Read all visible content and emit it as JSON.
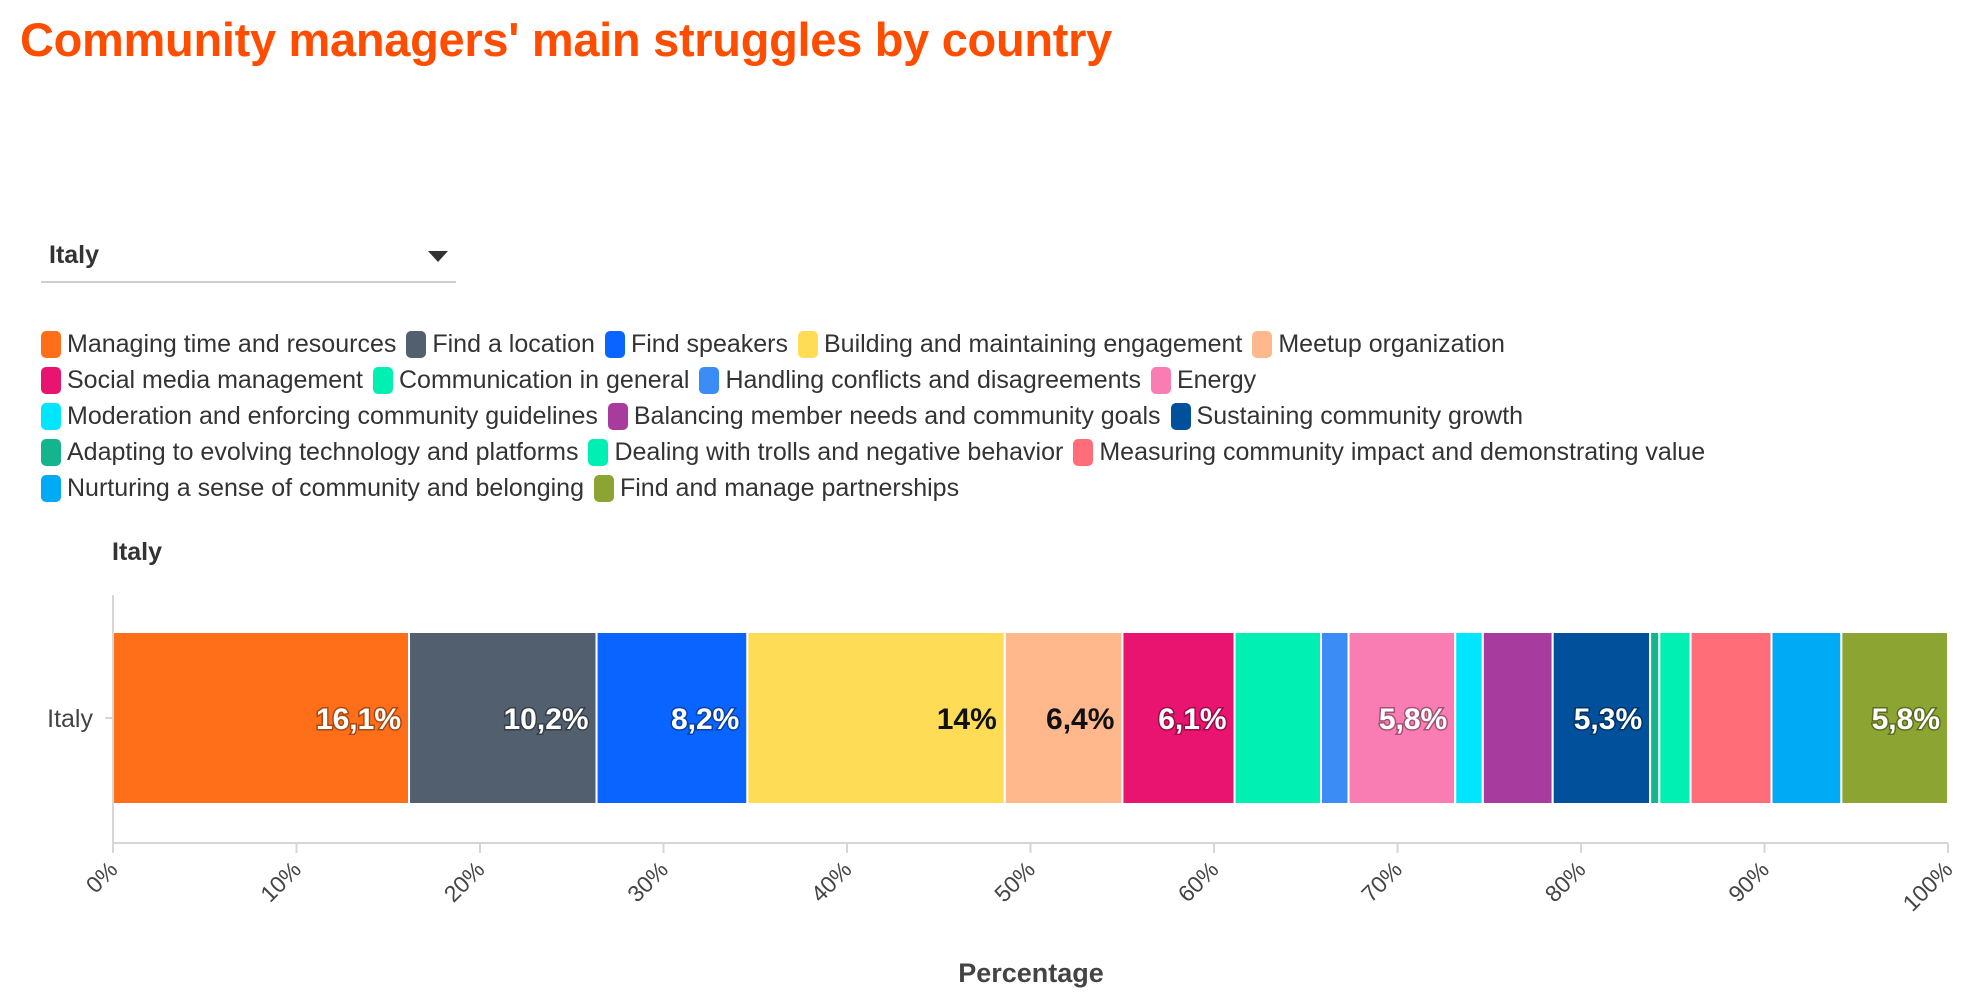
{
  "title": "Community managers' main struggles by country",
  "selector": {
    "selected": "Italy"
  },
  "legend_rows": [
    [
      0,
      1,
      2,
      3,
      4
    ],
    [
      5,
      6,
      7,
      8
    ],
    [
      9,
      10,
      11
    ],
    [
      12,
      13,
      14
    ],
    [
      15,
      16
    ]
  ],
  "chart_data": {
    "type": "bar",
    "orientation": "horizontal",
    "stacked": true,
    "title": "Italy",
    "xlabel": "Percentage",
    "ylabel": "",
    "xlim": [
      0,
      100
    ],
    "x_ticks": [
      "0%",
      "10%",
      "20%",
      "30%",
      "40%",
      "50%",
      "60%",
      "70%",
      "80%",
      "90%",
      "100%"
    ],
    "categories": [
      "Italy"
    ],
    "series": [
      {
        "name": "Managing time and resources",
        "color": "#ff6f1a",
        "values": [
          16.1
        ],
        "label": "16,1%",
        "label_color": "#ffffff"
      },
      {
        "name": "Find a location",
        "color": "#525f6e",
        "values": [
          10.2
        ],
        "label": "10,2%",
        "label_color": "#ffffff"
      },
      {
        "name": "Find speakers",
        "color": "#0a64ff",
        "values": [
          8.2
        ],
        "label": "8,2%",
        "label_color": "#ffffff"
      },
      {
        "name": "Building and maintaining engagement",
        "color": "#ffdc55",
        "values": [
          14
        ],
        "label": "14%",
        "label_color": "#111111"
      },
      {
        "name": "Meetup organization",
        "color": "#ffb88c",
        "values": [
          6.4
        ],
        "label": "6,4%",
        "label_color": "#111111"
      },
      {
        "name": "Social media management",
        "color": "#e8146f",
        "values": [
          6.1
        ],
        "label": "6,1%",
        "label_color": "#ffffff"
      },
      {
        "name": "Communication in general",
        "color": "#00f0b4",
        "values": [
          4.7
        ],
        "label": "",
        "label_color": "#ffffff"
      },
      {
        "name": "Handling conflicts and disagreements",
        "color": "#3c8cf5",
        "values": [
          1.5
        ],
        "label": "",
        "label_color": "#ffffff"
      },
      {
        "name": "Energy",
        "color": "#f97db2",
        "values": [
          5.8
        ],
        "label": "5,8%",
        "label_color": "#ffffff"
      },
      {
        "name": "Moderation and enforcing community guidelines",
        "color": "#00e6ff",
        "values": [
          1.5
        ],
        "label": "",
        "label_color": "#ffffff"
      },
      {
        "name": "Balancing member needs and community goals",
        "color": "#a83c9e",
        "values": [
          3.8
        ],
        "label": "",
        "label_color": "#ffffff"
      },
      {
        "name": "Sustaining community growth",
        "color": "#00509b",
        "values": [
          5.3
        ],
        "label": "5,3%",
        "label_color": "#ffffff"
      },
      {
        "name": "Adapting to evolving technology and platforms",
        "color": "#14b48c",
        "values": [
          0.5
        ],
        "label": "",
        "label_color": "#ffffff"
      },
      {
        "name": "Dealing with trolls and negative behavior",
        "color": "#00f0b4",
        "values": [
          1.7
        ],
        "label": "",
        "label_color": "#ffffff"
      },
      {
        "name": "Measuring community impact and demonstrating value",
        "color": "#ff6e78",
        "values": [
          4.4
        ],
        "label": "",
        "label_color": "#ffffff"
      },
      {
        "name": "Nurturing a sense of community and belonging",
        "color": "#00aaf5",
        "values": [
          3.8
        ],
        "label": "",
        "label_color": "#ffffff"
      },
      {
        "name": "Find and manage partnerships",
        "color": "#8ca532",
        "values": [
          5.8
        ],
        "label": "5,8%",
        "label_color": "#ffffff"
      }
    ]
  }
}
